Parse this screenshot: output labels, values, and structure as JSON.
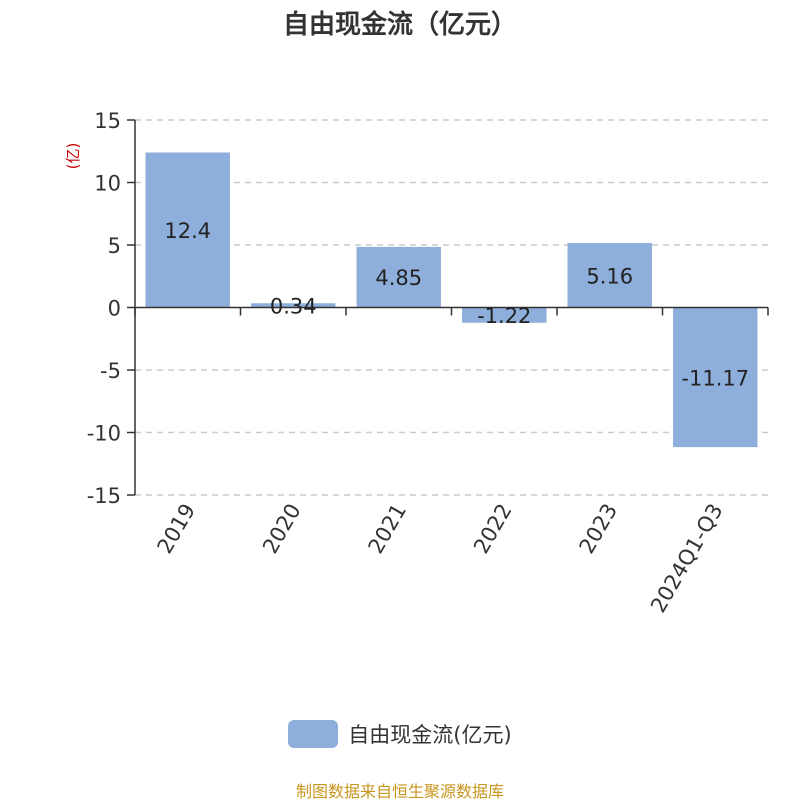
{
  "chart_data": {
    "type": "bar",
    "title": "自由现金流（亿元）",
    "ylabel": "(亿)",
    "categories": [
      "2019",
      "2020",
      "2021",
      "2022",
      "2023",
      "2024Q1-Q3"
    ],
    "series": [
      {
        "name": "自由现金流(亿元)",
        "values": [
          12.4,
          0.34,
          4.85,
          -1.22,
          5.16,
          -11.17
        ],
        "labels": [
          "12.4",
          "0.34",
          "4.85",
          "-1.22",
          "5.16",
          "-11.17"
        ]
      }
    ],
    "ylim": [
      -15,
      15
    ],
    "yticks": [
      -15,
      -10,
      -5,
      0,
      5,
      10,
      15
    ],
    "grid": true,
    "legend_position": "bottom"
  },
  "colors": {
    "bar": "#8eafdb",
    "ylabel": "#cc0000",
    "source": "#c8961e"
  },
  "source_note": "制图数据来自恒生聚源数据库"
}
